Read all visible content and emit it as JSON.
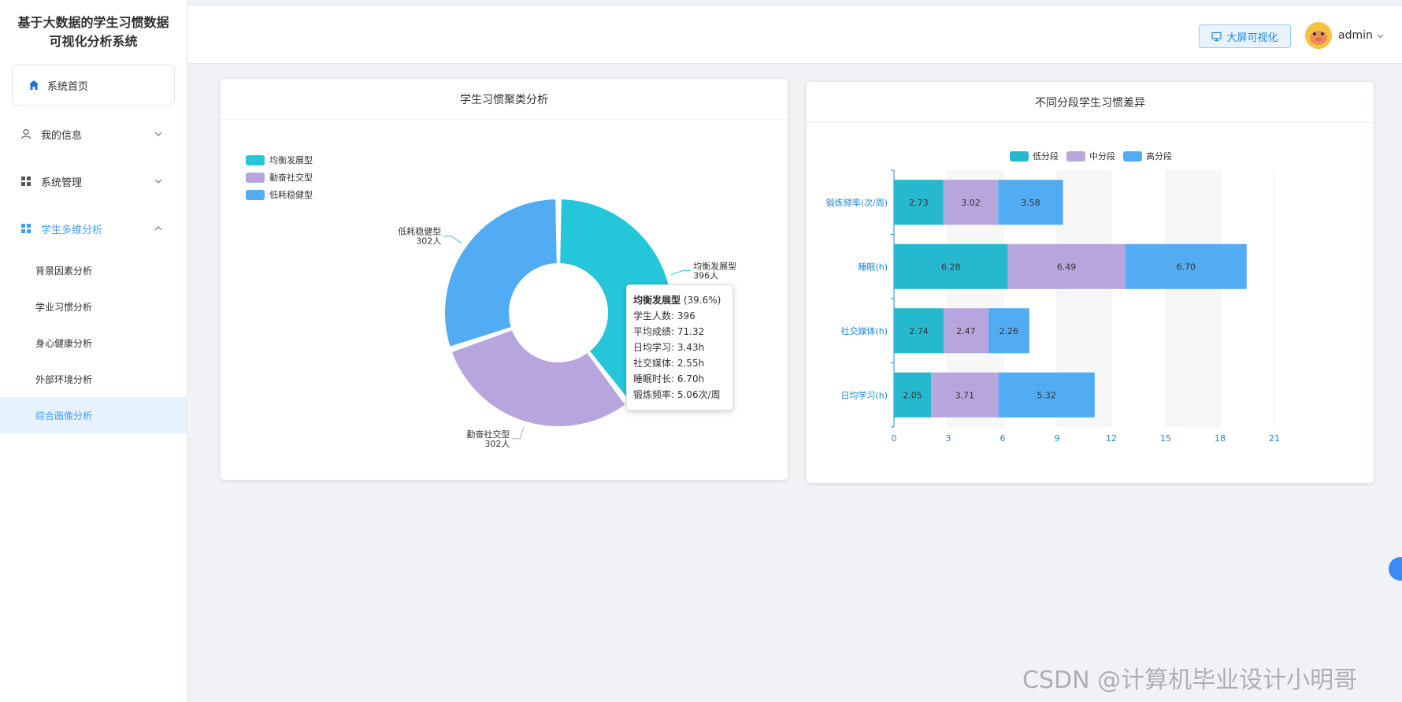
{
  "app": {
    "title_line1": "基于大数据的学生习惯数据",
    "title_line2": "可视化分析系统"
  },
  "sidebar": {
    "home": "系统首页",
    "items": [
      {
        "label": "我的信息",
        "icon": "user-icon"
      },
      {
        "label": "系统管理",
        "icon": "grid-icon"
      },
      {
        "label": "学生多维分析",
        "icon": "grid-icon"
      }
    ],
    "sub_items": [
      "背景因素分析",
      "学业习惯分析",
      "身心健康分析",
      "外部环境分析",
      "综合画像分析"
    ]
  },
  "header": {
    "screen_button": "大屏可视化",
    "username": "admin"
  },
  "cluster_chart": {
    "title": "学生习惯聚类分析",
    "legend": [
      "均衡发展型",
      "勤奋社交型",
      "低耗稳健型"
    ],
    "labels": [
      {
        "name": "均衡发展型",
        "count": "396人"
      },
      {
        "name": "勤奋社交型",
        "count": "302人"
      },
      {
        "name": "低耗稳健型",
        "count": "302人"
      }
    ],
    "tooltip": {
      "head": "均衡发展型",
      "pct": "(39.6%)",
      "lines": [
        "学生人数: 396",
        "平均成绩: 71.32",
        "日均学习: 3.43h",
        "社交媒体: 2.55h",
        "睡眠时长: 6.70h",
        "锻炼频率: 5.06次/周"
      ]
    }
  },
  "segment_chart": {
    "title": "不同分段学生习惯差异",
    "legend": [
      "低分段",
      "中分段",
      "高分段"
    ]
  },
  "chart_data": [
    {
      "type": "pie",
      "title": "学生习惯聚类分析",
      "categories": [
        "均衡发展型",
        "勤奋社交型",
        "低耗稳健型"
      ],
      "values": [
        396,
        302,
        302
      ],
      "colors": [
        "#26c6da",
        "#b7a6de",
        "#52acf3"
      ]
    },
    {
      "type": "bar",
      "orientation": "horizontal",
      "stacked": true,
      "title": "不同分段学生习惯差异",
      "categories": [
        "锻炼频率(次/周)",
        "睡眠(h)",
        "社交媒体(h)",
        "日均学习(h)"
      ],
      "series": [
        {
          "name": "低分段",
          "values": [
            2.73,
            6.28,
            2.74,
            2.05
          ],
          "color": "#26b8cf"
        },
        {
          "name": "中分段",
          "values": [
            3.02,
            6.49,
            2.47,
            3.71
          ],
          "color": "#b7a6de"
        },
        {
          "name": "高分段",
          "values": [
            3.58,
            6.7,
            2.26,
            5.32
          ],
          "color": "#52acf3"
        }
      ],
      "xlim": [
        0,
        21
      ],
      "xticks": [
        0,
        3,
        6,
        9,
        12,
        15,
        18,
        21
      ]
    }
  ],
  "watermark": "CSDN @计算机毕业设计小明哥"
}
